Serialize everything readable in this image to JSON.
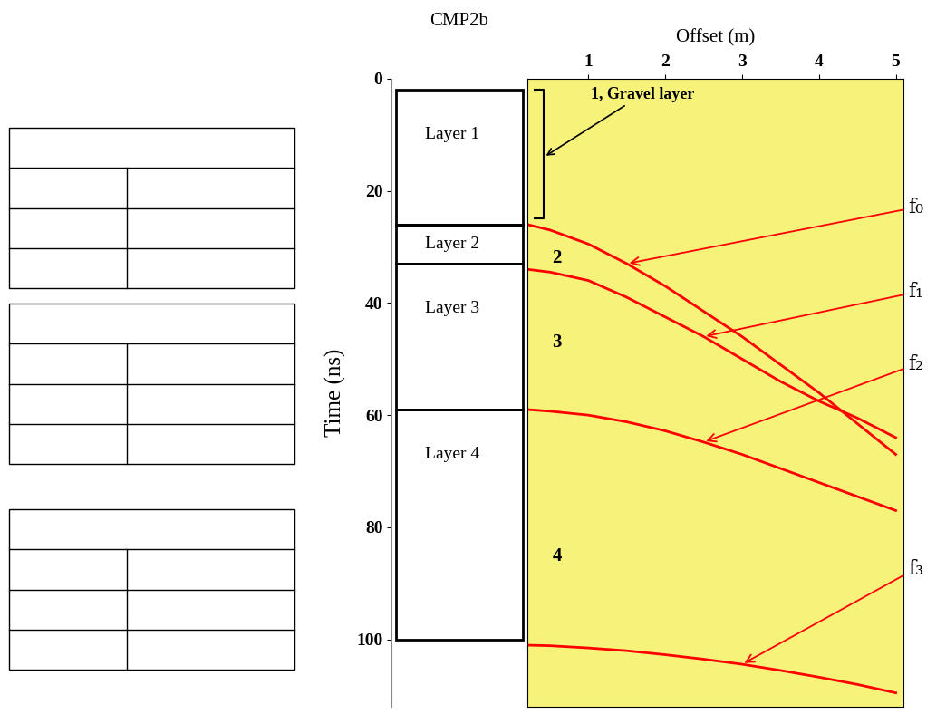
{
  "chart_data": {
    "type": "line",
    "title": "CMP2b",
    "x_label": "Offset (m)",
    "y_label": "Time (ns)",
    "x": [
      0.2,
      0.5,
      1,
      1.5,
      2,
      2.5,
      3,
      3.5,
      4,
      4.5,
      5
    ],
    "series": [
      {
        "name": "f₀",
        "color": "#ff0000",
        "values": [
          26,
          27,
          29.5,
          33,
          37,
          41.5,
          46,
          51,
          56,
          61.5,
          67
        ]
      },
      {
        "name": "f₁",
        "color": "#ff0000",
        "values": [
          34,
          34.5,
          36,
          39,
          42.5,
          46,
          50,
          54,
          57.5,
          60.5,
          64
        ]
      },
      {
        "name": "f₂",
        "color": "#ff0000",
        "values": [
          59,
          59.3,
          60,
          61.2,
          62.8,
          64.8,
          67,
          69.5,
          72,
          74.5,
          77
        ]
      },
      {
        "name": "f₃",
        "color": "#ff0000",
        "values": [
          101,
          101.1,
          101.5,
          102,
          102.7,
          103.5,
          104.4,
          105.5,
          106.7,
          108,
          109.5
        ]
      }
    ],
    "xlim": [
      0.2,
      5.1
    ],
    "ylim": [
      0,
      112
    ],
    "xticks": [
      1,
      2,
      3,
      4,
      5
    ],
    "yticks": [
      0,
      20,
      40,
      60,
      80,
      100
    ],
    "layers": [
      {
        "name": "Layer 1",
        "top": 2,
        "bottom": 26
      },
      {
        "name": "Layer 2",
        "top": 26,
        "bottom": 33
      },
      {
        "name": "Layer 3",
        "top": 33,
        "bottom": 59
      },
      {
        "name": "Layer 4",
        "top": 59,
        "bottom": 100
      }
    ],
    "annotations": {
      "gravel": "1, Gravel layer",
      "layer_numbers": [
        "2",
        "3",
        "4"
      ]
    }
  }
}
